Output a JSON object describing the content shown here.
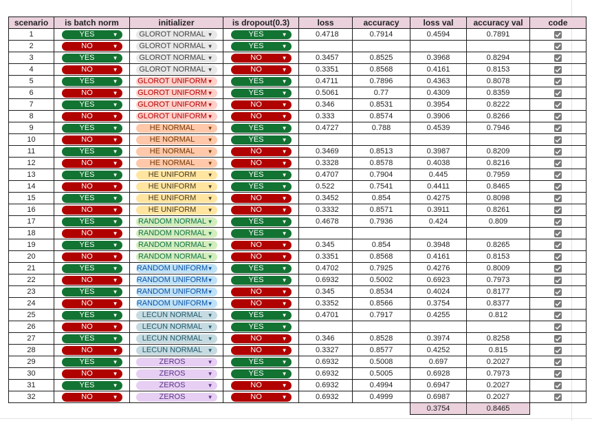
{
  "headers": [
    "scenario",
    "is batch norm",
    "initializer",
    "is dropout(0.3)",
    "loss",
    "accuracy",
    "loss val",
    "accuracy val",
    "code"
  ],
  "initializer_colors": {
    "GLOROT NORMAL": {
      "bg": "#e8e8e8",
      "fg": "#444444"
    },
    "GLOROT UNIFORM": {
      "bg": "#ffcfc9",
      "fg": "#b10202"
    },
    "HE NORMAL": {
      "bg": "#ffc8aa",
      "fg": "#753800"
    },
    "HE UNIFORM": {
      "bg": "#ffe5a0",
      "fg": "#473821"
    },
    "RANDOM NORMAL": {
      "bg": "#d4edbc",
      "fg": "#11734b"
    },
    "RANDOM UNIFORM": {
      "bg": "#bfe1f6",
      "fg": "#0a53a8"
    },
    "LECUN NORMAL": {
      "bg": "#c6dbe1",
      "fg": "#215a6c"
    },
    "ZEROS": {
      "bg": "#e6cff2",
      "fg": "#5a3286"
    }
  },
  "rows": [
    {
      "scenario": "1",
      "batch_norm": "YES",
      "initializer": "GLOROT NORMAL",
      "dropout": "YES",
      "loss": "0.4718",
      "accuracy": "0.7914",
      "loss_val": "0.4594",
      "accuracy_val": "0.7891"
    },
    {
      "scenario": "2",
      "batch_norm": "NO",
      "initializer": "GLOROT NORMAL",
      "dropout": "YES",
      "loss": "",
      "accuracy": "",
      "loss_val": "",
      "accuracy_val": ""
    },
    {
      "scenario": "3",
      "batch_norm": "YES",
      "initializer": "GLOROT NORMAL",
      "dropout": "NO",
      "loss": "0.3457",
      "accuracy": "0.8525",
      "loss_val": "0.3968",
      "accuracy_val": "0.8294"
    },
    {
      "scenario": "4",
      "batch_norm": "NO",
      "initializer": "GLOROT NORMAL",
      "dropout": "NO",
      "loss": "0.3351",
      "accuracy": "0.8568",
      "loss_val": "0.4161",
      "accuracy_val": "0.8153"
    },
    {
      "scenario": "5",
      "batch_norm": "YES",
      "initializer": "GLOROT UNIFORM",
      "dropout": "YES",
      "loss": "0.4711",
      "accuracy": "0.7896",
      "loss_val": "0.4363",
      "accuracy_val": "0.8078"
    },
    {
      "scenario": "6",
      "batch_norm": "NO",
      "initializer": "GLOROT UNIFORM",
      "dropout": "YES",
      "loss": "0.5061",
      "accuracy": "0.77",
      "loss_val": "0.4309",
      "accuracy_val": "0.8359"
    },
    {
      "scenario": "7",
      "batch_norm": "YES",
      "initializer": "GLOROT UNIFORM",
      "dropout": "NO",
      "loss": "0.346",
      "accuracy": "0.8531",
      "loss_val": "0.3954",
      "accuracy_val": "0.8222"
    },
    {
      "scenario": "8",
      "batch_norm": "NO",
      "initializer": "GLOROT UNIFORM",
      "dropout": "NO",
      "loss": "0.333",
      "accuracy": "0.8574",
      "loss_val": "0.3906",
      "accuracy_val": "0.8266"
    },
    {
      "scenario": "9",
      "batch_norm": "YES",
      "initializer": "HE NORMAL",
      "dropout": "YES",
      "loss": "0.4727",
      "accuracy": "0.788",
      "loss_val": "0.4539",
      "accuracy_val": "0.7946"
    },
    {
      "scenario": "10",
      "batch_norm": "NO",
      "initializer": "HE NORMAL",
      "dropout": "YES",
      "loss": "",
      "accuracy": "",
      "loss_val": "",
      "accuracy_val": ""
    },
    {
      "scenario": "11",
      "batch_norm": "YES",
      "initializer": "HE NORMAL",
      "dropout": "NO",
      "loss": "0.3469",
      "accuracy": "0.8513",
      "loss_val": "0.3987",
      "accuracy_val": "0.8209"
    },
    {
      "scenario": "12",
      "batch_norm": "NO",
      "initializer": "HE NORMAL",
      "dropout": "NO",
      "loss": "0.3328",
      "accuracy": "0.8578",
      "loss_val": "0.4038",
      "accuracy_val": "0.8216"
    },
    {
      "scenario": "13",
      "batch_norm": "YES",
      "initializer": "HE UNIFORM",
      "dropout": "YES",
      "loss": "0.4707",
      "accuracy": "0.7904",
      "loss_val": "0.445",
      "accuracy_val": "0.7959"
    },
    {
      "scenario": "14",
      "batch_norm": "NO",
      "initializer": "HE UNIFORM",
      "dropout": "YES",
      "loss": "0.522",
      "accuracy": "0.7541",
      "loss_val": "0.4411",
      "accuracy_val": "0.8465"
    },
    {
      "scenario": "15",
      "batch_norm": "YES",
      "initializer": "HE UNIFORM",
      "dropout": "NO",
      "loss": "0.3452",
      "accuracy": "0.854",
      "loss_val": "0.4275",
      "accuracy_val": "0.8098"
    },
    {
      "scenario": "16",
      "batch_norm": "NO",
      "initializer": "HE UNIFORM",
      "dropout": "NO",
      "loss": "0.3332",
      "accuracy": "0.8571",
      "loss_val": "0.3911",
      "accuracy_val": "0.8261"
    },
    {
      "scenario": "17",
      "batch_norm": "YES",
      "initializer": "RANDOM NORMAL",
      "dropout": "YES",
      "loss": "0.4678",
      "accuracy": "0.7936",
      "loss_val": "0.424",
      "accuracy_val": "0.809"
    },
    {
      "scenario": "18",
      "batch_norm": "NO",
      "initializer": "RANDOM NORMAL",
      "dropout": "YES",
      "loss": "",
      "accuracy": "",
      "loss_val": "",
      "accuracy_val": ""
    },
    {
      "scenario": "19",
      "batch_norm": "YES",
      "initializer": "RANDOM NORMAL",
      "dropout": "NO",
      "loss": "0.345",
      "accuracy": "0.854",
      "loss_val": "0.3948",
      "accuracy_val": "0.8265"
    },
    {
      "scenario": "20",
      "batch_norm": "NO",
      "initializer": "RANDOM NORMAL",
      "dropout": "NO",
      "loss": "0.3351",
      "accuracy": "0.8568",
      "loss_val": "0.4161",
      "accuracy_val": "0.8153"
    },
    {
      "scenario": "21",
      "batch_norm": "YES",
      "initializer": "RANDOM UNIFORM",
      "dropout": "YES",
      "loss": "0.4702",
      "accuracy": "0.7925",
      "loss_val": "0.4276",
      "accuracy_val": "0.8009"
    },
    {
      "scenario": "22",
      "batch_norm": "NO",
      "initializer": "RANDOM UNIFORM",
      "dropout": "YES",
      "loss": "0.6932",
      "accuracy": "0.5002",
      "loss_val": "0.6923",
      "accuracy_val": "0.7973"
    },
    {
      "scenario": "23",
      "batch_norm": "YES",
      "initializer": "RANDOM UNIFORM",
      "dropout": "NO",
      "loss": "0.345",
      "accuracy": "0.8534",
      "loss_val": "0.4024",
      "accuracy_val": "0.8177"
    },
    {
      "scenario": "24",
      "batch_norm": "NO",
      "initializer": "RANDOM UNIFORM",
      "dropout": "NO",
      "loss": "0.3352",
      "accuracy": "0.8566",
      "loss_val": "0.3754",
      "accuracy_val": "0.8377"
    },
    {
      "scenario": "25",
      "batch_norm": "YES",
      "initializer": "LECUN NORMAL",
      "dropout": "YES",
      "loss": "0.4701",
      "accuracy": "0.7917",
      "loss_val": "0.4255",
      "accuracy_val": "0.812"
    },
    {
      "scenario": "26",
      "batch_norm": "NO",
      "initializer": "LECUN NORMAL",
      "dropout": "YES",
      "loss": "",
      "accuracy": "",
      "loss_val": "",
      "accuracy_val": ""
    },
    {
      "scenario": "27",
      "batch_norm": "YES",
      "initializer": "LECUN NORMAL",
      "dropout": "NO",
      "loss": "0.346",
      "accuracy": "0.8528",
      "loss_val": "0.3974",
      "accuracy_val": "0.8258"
    },
    {
      "scenario": "28",
      "batch_norm": "NO",
      "initializer": "LECUN NORMAL",
      "dropout": "NO",
      "loss": "0.3327",
      "accuracy": "0.8577",
      "loss_val": "0.4252",
      "accuracy_val": "0.815"
    },
    {
      "scenario": "29",
      "batch_norm": "YES",
      "initializer": "ZEROS",
      "dropout": "YES",
      "loss": "0.6932",
      "accuracy": "0.5008",
      "loss_val": "0.697",
      "accuracy_val": "0.2027"
    },
    {
      "scenario": "30",
      "batch_norm": "NO",
      "initializer": "ZEROS",
      "dropout": "YES",
      "loss": "0.6932",
      "accuracy": "0.5005",
      "loss_val": "0.6928",
      "accuracy_val": "0.7973"
    },
    {
      "scenario": "31",
      "batch_norm": "YES",
      "initializer": "ZEROS",
      "dropout": "NO",
      "loss": "0.6932",
      "accuracy": "0.4994",
      "loss_val": "0.6947",
      "accuracy_val": "0.2027"
    },
    {
      "scenario": "32",
      "batch_norm": "NO",
      "initializer": "ZEROS",
      "dropout": "NO",
      "loss": "0.6932",
      "accuracy": "0.4999",
      "loss_val": "0.6987",
      "accuracy_val": "0.2027"
    }
  ],
  "summary": {
    "loss_val": "0.3754",
    "accuracy_val": "0.8465"
  },
  "code_checked": true
}
